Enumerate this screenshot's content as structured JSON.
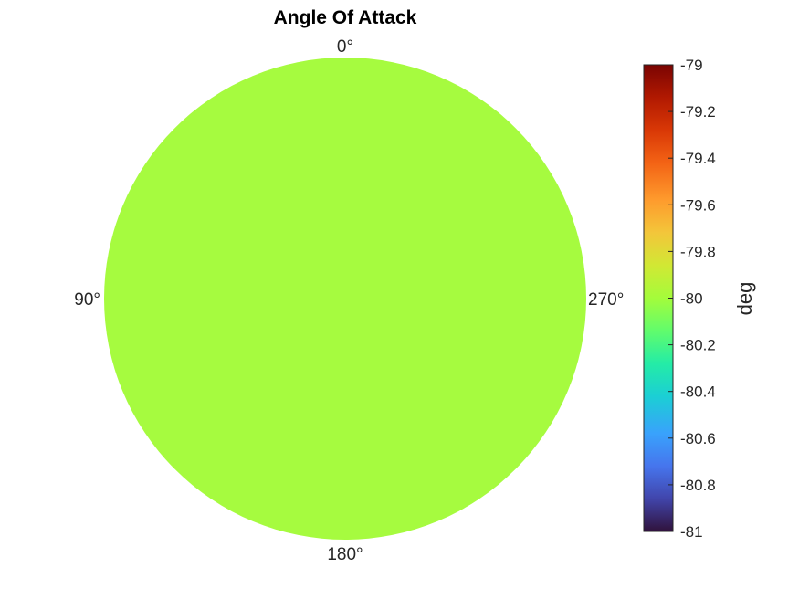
{
  "chart_data": {
    "type": "heatmap",
    "subtype": "polar-surface",
    "title": "Angle Of Attack",
    "angle_labels": [
      {
        "angle_deg": 0,
        "text": "0°"
      },
      {
        "angle_deg": 90,
        "text": "90°"
      },
      {
        "angle_deg": 180,
        "text": "180°"
      },
      {
        "angle_deg": 270,
        "text": "270°"
      }
    ],
    "angle_direction": "counterclockwise",
    "zero_location": "top",
    "values": {
      "uniform_value": -80
    },
    "fill_color": "#a6fb3f",
    "colorbar": {
      "label": "deg",
      "colormap": "turbo",
      "clim": [
        -81,
        -79
      ],
      "ticks": [
        -79,
        -79.2,
        -79.4,
        -79.6,
        -79.8,
        -80,
        -80.2,
        -80.4,
        -80.6,
        -80.8,
        -81
      ],
      "tick_labels": [
        "-79",
        "-79.2",
        "-79.4",
        "-79.6",
        "-79.8",
        "-80",
        "-80.2",
        "-80.4",
        "-80.6",
        "-80.8",
        "-81"
      ],
      "placement": "right"
    },
    "grid": false
  }
}
